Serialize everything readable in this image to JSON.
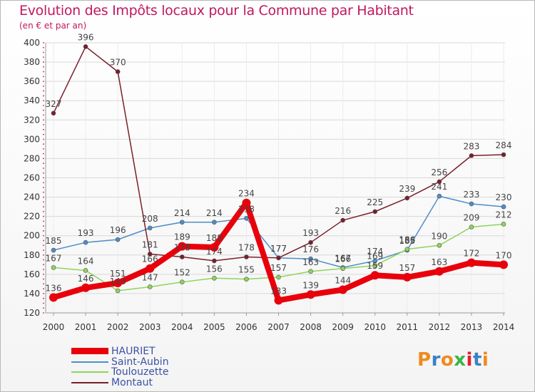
{
  "title": "Evolution des Impôts locaux pour la Commune par Habitant",
  "subtitle": "(en € et par an)",
  "brand": {
    "text": "Proxiti",
    "colors": [
      "#f08a1c",
      "#3b82c4",
      "#f08a1c",
      "#3bb54a",
      "#e2202c",
      "#3b82c4",
      "#f08a1c"
    ]
  },
  "colors": {
    "title": "#c0185f",
    "axis": "#c0185f",
    "grid": "#d8d8d8",
    "label": "#444444",
    "legend_text": "#3b52a3"
  },
  "chart_data": {
    "type": "line",
    "title": "Evolution des Impôts locaux pour la Commune par Habitant",
    "ylabel": "(en € et par an)",
    "xlabel": "",
    "x": [
      "2000",
      "2001",
      "2002",
      "2003",
      "2004",
      "2005",
      "2006",
      "2007",
      "2008",
      "2009",
      "2010",
      "2011",
      "2012",
      "2013",
      "2014"
    ],
    "ylim": [
      120,
      400
    ],
    "yticks": [
      120,
      140,
      160,
      180,
      200,
      220,
      240,
      260,
      280,
      300,
      320,
      340,
      360,
      380,
      400
    ],
    "grid": true,
    "legend_position": "bottom-left",
    "series": [
      {
        "name": "Saint-Aubin",
        "color": "#4e8ec9",
        "values": [
          185,
          193,
          196,
          208,
          214,
          214,
          218,
          177,
          176,
          167,
          174,
          185,
          241,
          233,
          230
        ],
        "labels": [
          "185",
          "193",
          "196",
          "208",
          "214",
          "214",
          "218",
          "177",
          "176",
          "167",
          "174",
          "185",
          "241",
          "233",
          "230"
        ]
      },
      {
        "name": "Toulouzette",
        "color": "#8fd45a",
        "values": [
          167,
          164,
          143,
          147,
          152,
          156,
          155,
          157,
          163,
          166,
          169,
          186,
          190,
          209,
          212
        ],
        "labels": [
          "167",
          "164",
          "143",
          "147",
          "152",
          "156",
          "155",
          "157",
          "163",
          "166",
          "169",
          "186",
          "190",
          "209",
          "212"
        ]
      },
      {
        "name": "Montaut",
        "color": "#7a1f2a",
        "values": [
          327,
          396,
          370,
          181,
          178,
          174,
          178,
          177,
          193,
          216,
          225,
          239,
          256,
          283,
          284
        ],
        "labels": [
          "327",
          "396",
          "370",
          "181",
          "178",
          "174",
          "178",
          "177",
          "193",
          "216",
          "225",
          "239",
          "256",
          "283",
          "284"
        ]
      },
      {
        "name": "HAURIET",
        "color": "#e8000b",
        "values": [
          136,
          146,
          151,
          166,
          189,
          188,
          234,
          133,
          139,
          144,
          159,
          157,
          163,
          172,
          170
        ],
        "labels": [
          "136",
          "146",
          "151",
          "166",
          "189",
          "188",
          "234",
          "133",
          "139",
          "144",
          "159",
          "157",
          "163",
          "172",
          "170"
        ]
      }
    ],
    "legend": [
      "HAURIET",
      "Saint-Aubin",
      "Toulouzette",
      "Montaut"
    ]
  }
}
